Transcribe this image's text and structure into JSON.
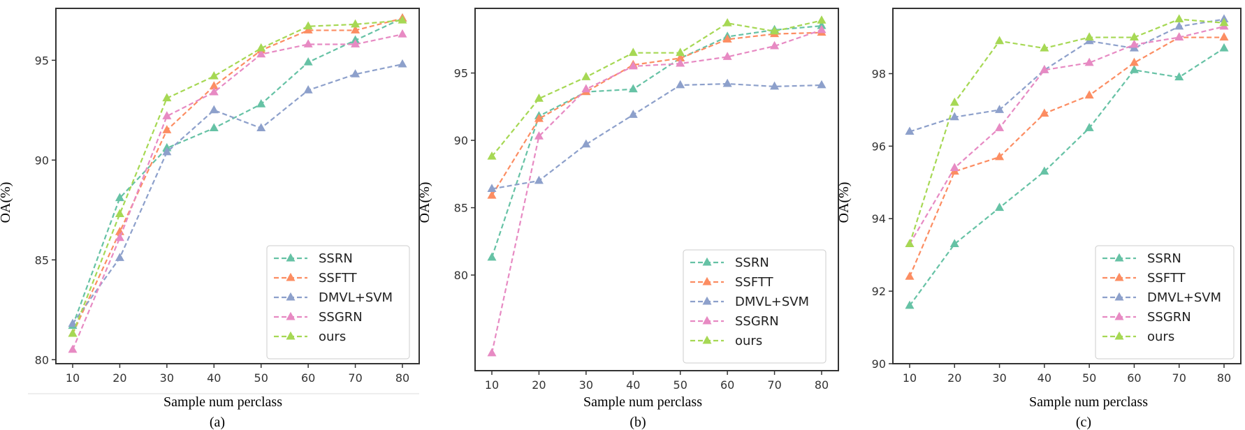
{
  "legend": [
    "SSRN",
    "SSFTT",
    "DMVL+SVM",
    "SSGRN",
    "ours"
  ],
  "colors": {
    "SSRN": "#66c2a5",
    "SSFTT": "#fc8d62",
    "DMVL+SVM": "#8da0cb",
    "SSGRN": "#e78ac3",
    "ours": "#a6d854"
  },
  "chart_data": [
    {
      "type": "line",
      "caption": "(a)",
      "xlabel": "Sample num perclass",
      "ylabel": "OA(%)",
      "x": [
        10,
        20,
        30,
        40,
        50,
        60,
        70,
        80
      ],
      "ylim": [
        79.8,
        97.6
      ],
      "yticks": [
        80,
        85,
        90,
        95
      ],
      "grid": false,
      "legend_position": "bottom-right",
      "series": [
        {
          "name": "SSRN",
          "values": [
            81.7,
            88.1,
            90.6,
            91.6,
            92.8,
            94.9,
            96.0,
            97.1
          ]
        },
        {
          "name": "SSFTT",
          "values": [
            81.3,
            86.4,
            91.5,
            93.7,
            95.5,
            96.5,
            96.5,
            97.1
          ]
        },
        {
          "name": "DMVL+SVM",
          "values": [
            81.8,
            85.1,
            90.4,
            92.5,
            91.6,
            93.5,
            94.3,
            94.8
          ]
        },
        {
          "name": "SSGRN",
          "values": [
            80.5,
            86.1,
            92.2,
            93.4,
            95.3,
            95.8,
            95.8,
            96.3
          ]
        },
        {
          "name": "ours",
          "values": [
            81.3,
            87.3,
            93.1,
            94.2,
            95.6,
            96.7,
            96.8,
            97.0
          ]
        }
      ]
    },
    {
      "type": "line",
      "caption": "(b)",
      "xlabel": "Sample num perclass",
      "ylabel": "OA(%)",
      "x": [
        10,
        20,
        30,
        40,
        50,
        60,
        70,
        80
      ],
      "ylim": [
        72.9,
        99.8
      ],
      "yticks": [
        80,
        85,
        90,
        95
      ],
      "grid": false,
      "legend_position": "bottom-right",
      "series": [
        {
          "name": "SSRN",
          "values": [
            81.3,
            91.8,
            93.6,
            93.8,
            96.1,
            97.7,
            98.2,
            98.5
          ]
        },
        {
          "name": "SSFTT",
          "values": [
            85.9,
            91.6,
            93.6,
            95.6,
            96.1,
            97.5,
            97.9,
            98.0
          ]
        },
        {
          "name": "DMVL+SVM",
          "values": [
            86.4,
            87.0,
            89.7,
            91.9,
            94.1,
            94.2,
            94.0,
            94.1
          ]
        },
        {
          "name": "SSGRN",
          "values": [
            74.2,
            90.3,
            93.8,
            95.5,
            95.7,
            96.2,
            97.0,
            98.2
          ]
        },
        {
          "name": "ours",
          "values": [
            88.8,
            93.1,
            94.7,
            96.5,
            96.5,
            98.7,
            98.1,
            98.9
          ]
        }
      ]
    },
    {
      "type": "line",
      "caption": "(c)",
      "xlabel": "Sample num perclass",
      "ylabel": "OA(%)",
      "x": [
        10,
        20,
        30,
        40,
        50,
        60,
        70,
        80
      ],
      "ylim": [
        90.0,
        99.8
      ],
      "yticks": [
        90,
        92,
        94,
        96,
        98
      ],
      "grid": false,
      "legend_position": "bottom-right",
      "series": [
        {
          "name": "SSRN",
          "values": [
            91.6,
            93.3,
            94.3,
            95.3,
            96.5,
            98.1,
            97.9,
            98.7
          ]
        },
        {
          "name": "SSFTT",
          "values": [
            92.4,
            95.3,
            95.7,
            96.9,
            97.4,
            98.3,
            99.0,
            99.0
          ]
        },
        {
          "name": "DMVL+SVM",
          "values": [
            96.4,
            96.8,
            97.0,
            98.1,
            98.9,
            98.7,
            99.3,
            99.5
          ]
        },
        {
          "name": "SSGRN",
          "values": [
            93.3,
            95.4,
            96.5,
            98.1,
            98.3,
            98.8,
            99.0,
            99.3
          ]
        },
        {
          "name": "ours",
          "values": [
            93.3,
            97.2,
            98.9,
            98.7,
            99.0,
            99.0,
            99.5,
            99.4
          ]
        }
      ]
    }
  ]
}
